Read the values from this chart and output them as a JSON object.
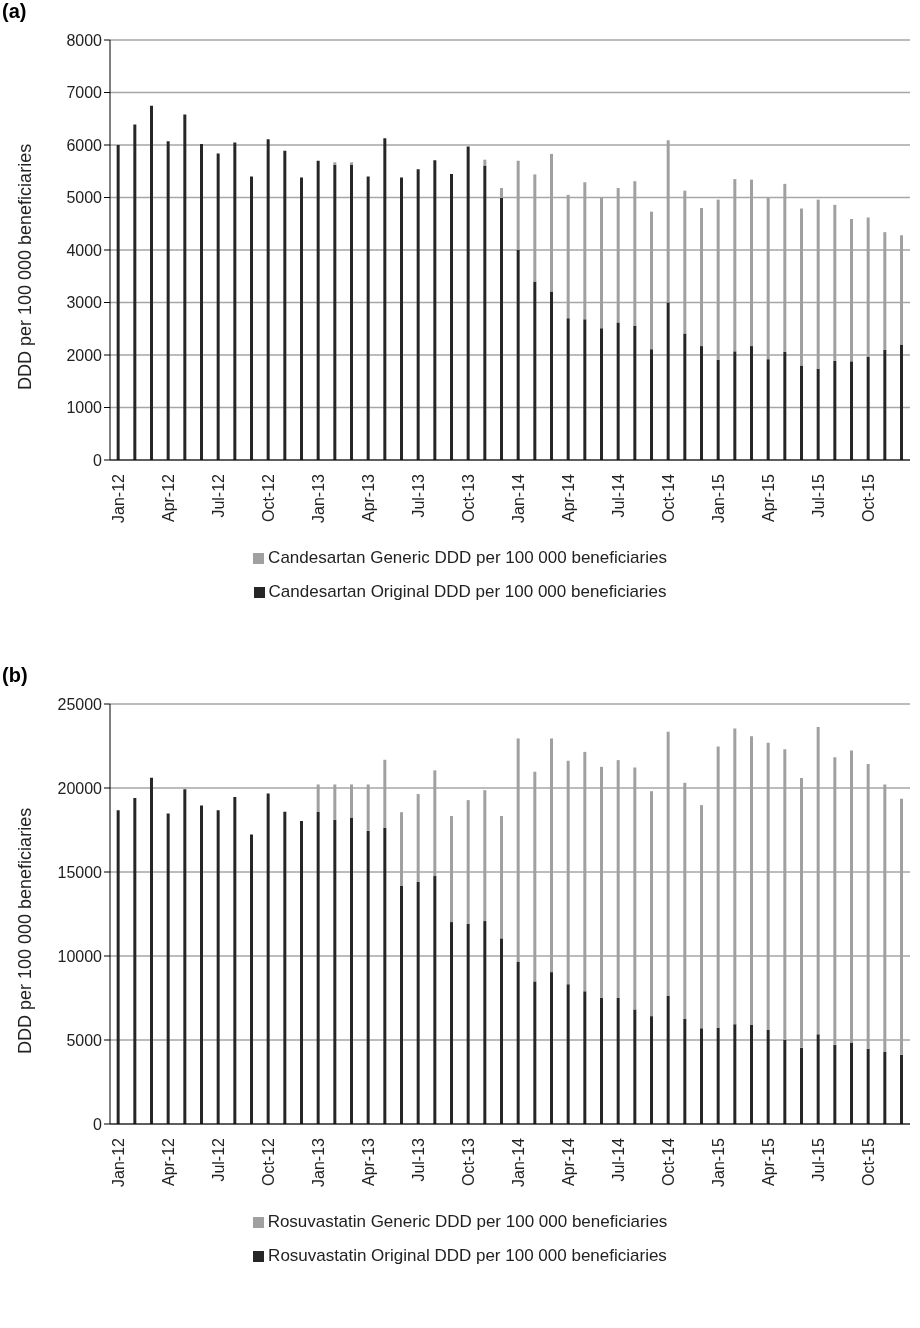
{
  "chart_data": [
    {
      "type": "bar",
      "title": "(a)",
      "ylabel": "DDD per 100 000 beneficiaries",
      "categories": [
        "Jan-12",
        null,
        null,
        "Apr-12",
        null,
        null,
        "Jul-12",
        null,
        null,
        "Oct-12",
        null,
        null,
        "Jan-13",
        null,
        null,
        "Apr-13",
        null,
        null,
        "Jul-13",
        null,
        null,
        "Oct-13",
        null,
        null,
        "Jan-14",
        null,
        null,
        "Apr-14",
        null,
        null,
        "Jul-14",
        null,
        null,
        "Oct-14",
        null,
        null,
        "Jan-15",
        null,
        null,
        "Apr-15",
        null,
        null,
        "Jul-15",
        null,
        null,
        "Oct-15",
        null,
        null
      ],
      "stacked": true,
      "ylim": [
        0,
        8000
      ],
      "yticks": [
        0,
        1000,
        2000,
        3000,
        4000,
        5000,
        6000,
        7000,
        8000
      ],
      "grid": "y",
      "legend": "bottom",
      "series": [
        {
          "name": "Candesartan Original DDD per 100 000 beneficiaries",
          "color": "#262626",
          "values": [
            6000,
            6390,
            6750,
            6070,
            6580,
            6020,
            5840,
            6050,
            5400,
            6110,
            5890,
            5380,
            5700,
            5620,
            5620,
            5400,
            6130,
            5380,
            5540,
            5710,
            5450,
            5970,
            5610,
            4990,
            4000,
            3400,
            3210,
            2700,
            2680,
            2510,
            2620,
            2560,
            2110,
            3000,
            2410,
            2170,
            1910,
            2070,
            2170,
            1920,
            2060,
            1800,
            1740,
            1890,
            1880,
            1970,
            2100,
            2200
          ]
        },
        {
          "name": "Candesartan Generic DDD per 100 000 beneficiaries",
          "color": "#a0a0a0",
          "values": [
            0,
            0,
            0,
            0,
            0,
            0,
            0,
            0,
            0,
            0,
            0,
            0,
            0,
            50,
            50,
            0,
            0,
            0,
            0,
            0,
            0,
            0,
            110,
            190,
            1700,
            2040,
            2620,
            2350,
            2610,
            2490,
            2560,
            2750,
            2620,
            3090,
            2720,
            2630,
            3050,
            3280,
            3170,
            3070,
            3200,
            2990,
            3220,
            2970,
            2710,
            2650,
            2240,
            2080
          ]
        }
      ]
    },
    {
      "type": "bar",
      "title": "(b)",
      "ylabel": "DDD per 100 000 beneficiaries",
      "categories": [
        "Jan-12",
        null,
        null,
        "Apr-12",
        null,
        null,
        "Jul-12",
        null,
        null,
        "Oct-12",
        null,
        null,
        "Jan-13",
        null,
        null,
        "Apr-13",
        null,
        null,
        "Jul-13",
        null,
        null,
        "Oct-13",
        null,
        null,
        "Jan-14",
        null,
        null,
        "Apr-14",
        null,
        null,
        "Jul-14",
        null,
        null,
        "Oct-14",
        null,
        null,
        "Jan-15",
        null,
        null,
        "Apr-15",
        null,
        null,
        "Jul-15",
        null,
        null,
        "Oct-15",
        null,
        null
      ],
      "stacked": true,
      "ylim": [
        0,
        25000
      ],
      "yticks": [
        0,
        5000,
        10000,
        15000,
        20000,
        25000
      ],
      "grid": "y",
      "legend": "bottom",
      "series": [
        {
          "name": "Rosuvastatin Original DDD per 100 000 beneficiaries",
          "color": "#262626",
          "values": [
            18670,
            19400,
            20610,
            18480,
            19930,
            18960,
            18670,
            19470,
            17230,
            19680,
            18580,
            18030,
            18580,
            18100,
            18250,
            17460,
            17630,
            14190,
            14420,
            14760,
            12020,
            11910,
            12080,
            11050,
            9670,
            8490,
            9040,
            8320,
            7900,
            7520,
            7500,
            6820,
            6420,
            7640,
            6250,
            5700,
            5730,
            5940,
            5900,
            5620,
            5010,
            4540,
            5340,
            4710,
            4820,
            4480,
            4290,
            4120
          ]
        },
        {
          "name": "Rosuvastatin Generic DDD per 100 000 beneficiaries",
          "color": "#a0a0a0",
          "values": [
            0,
            0,
            0,
            0,
            0,
            0,
            0,
            0,
            0,
            0,
            0,
            0,
            1630,
            2110,
            1960,
            2750,
            4050,
            4370,
            5220,
            6290,
            6310,
            7370,
            7790,
            7280,
            13280,
            12480,
            13910,
            13300,
            14250,
            13740,
            14160,
            14400,
            13390,
            15710,
            14060,
            13280,
            16740,
            17600,
            17180,
            17080,
            17290,
            16050,
            18290,
            17120,
            17410,
            16950,
            15920,
            15240
          ]
        }
      ]
    }
  ]
}
